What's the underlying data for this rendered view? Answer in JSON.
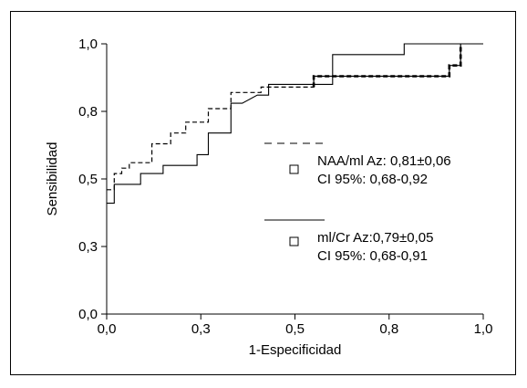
{
  "chart_data": {
    "type": "line",
    "xlabel": "1-Especificidad",
    "ylabel": "Sensibilidad",
    "xlim": [
      0,
      1
    ],
    "ylim": [
      0,
      1
    ],
    "x_ticks": [
      0,
      0.25,
      0.5,
      0.75,
      1
    ],
    "x_tick_labels": [
      "0,0",
      "0,3",
      "0,5",
      "0,8",
      "1,0"
    ],
    "y_ticks": [
      0,
      0.25,
      0.5,
      0.75,
      1
    ],
    "y_tick_labels": [
      "0,0",
      "0,3",
      "0,5",
      "0,8",
      "1,0"
    ],
    "legend_placement": "right",
    "series": [
      {
        "style": "dashed",
        "legend_lines": [
          "NAA/ml Az: 0,81±0,06",
          "CI 95%: 0,68-0,92"
        ],
        "points": [
          [
            0,
            0.46
          ],
          [
            0.02,
            0.46
          ],
          [
            0.02,
            0.52
          ],
          [
            0.04,
            0.52
          ],
          [
            0.04,
            0.54
          ],
          [
            0.06,
            0.54
          ],
          [
            0.06,
            0.56
          ],
          [
            0.12,
            0.56
          ],
          [
            0.12,
            0.63
          ],
          [
            0.17,
            0.63
          ],
          [
            0.17,
            0.67
          ],
          [
            0.21,
            0.67
          ],
          [
            0.21,
            0.71
          ],
          [
            0.27,
            0.71
          ],
          [
            0.27,
            0.76
          ],
          [
            0.33,
            0.76
          ],
          [
            0.33,
            0.82
          ],
          [
            0.41,
            0.82
          ],
          [
            0.41,
            0.84
          ],
          [
            0.55,
            0.84
          ],
          [
            0.55,
            0.88
          ],
          [
            0.91,
            0.88
          ],
          [
            0.91,
            0.92
          ],
          [
            0.94,
            0.92
          ],
          [
            0.94,
            1.0
          ]
        ]
      },
      {
        "style": "solid",
        "legend_lines": [
          "ml/Cr Az:0,79±0,05",
          "CI 95%: 0,68-0,91"
        ],
        "points": [
          [
            0,
            0.41
          ],
          [
            0.02,
            0.41
          ],
          [
            0.02,
            0.48
          ],
          [
            0.09,
            0.48
          ],
          [
            0.09,
            0.52
          ],
          [
            0.15,
            0.52
          ],
          [
            0.15,
            0.55
          ],
          [
            0.24,
            0.55
          ],
          [
            0.24,
            0.59
          ],
          [
            0.27,
            0.59
          ],
          [
            0.27,
            0.67
          ],
          [
            0.33,
            0.67
          ],
          [
            0.33,
            0.78
          ],
          [
            0.36,
            0.78
          ],
          [
            0.4,
            0.81
          ],
          [
            0.43,
            0.81
          ],
          [
            0.43,
            0.85
          ],
          [
            0.6,
            0.85
          ],
          [
            0.6,
            0.96
          ],
          [
            0.79,
            0.96
          ],
          [
            0.79,
            1.0
          ],
          [
            1.0,
            1.0
          ]
        ]
      }
    ]
  }
}
